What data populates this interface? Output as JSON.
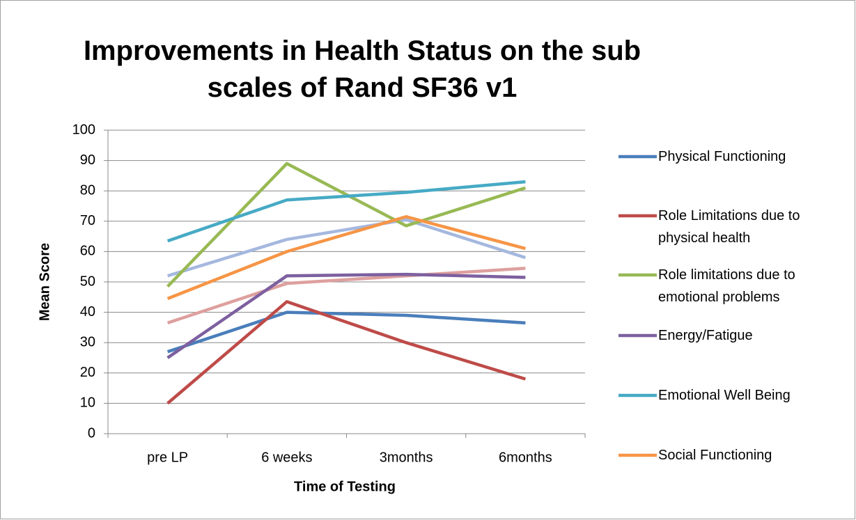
{
  "chart_data": {
    "type": "line",
    "title": "Improvements in Health Status on the sub scales of Rand SF36 v1",
    "x_label": "Time of Testing",
    "y_label": "Mean Score",
    "categories": [
      "pre LP",
      "6 weeks",
      "3months",
      "6months"
    ],
    "series": [
      {
        "name": "Physical Functioning",
        "color": "#4a7ebb",
        "values": [
          27,
          40,
          39,
          36.5
        ]
      },
      {
        "name": "Role Limitations due to physical health",
        "color": "#be4b48",
        "values": [
          10,
          43.5,
          30,
          18
        ]
      },
      {
        "name": "Role limitations due to emotional problems",
        "color": "#98b954",
        "values": [
          48.5,
          89,
          68.5,
          81
        ]
      },
      {
        "name": "Energy/Fatigue",
        "color": "#7d60a0",
        "values": [
          25,
          52,
          52.5,
          51.5
        ]
      },
      {
        "name": "Emotional Well Being",
        "color": "#46aac5",
        "values": [
          63.5,
          77,
          79.5,
          83
        ]
      },
      {
        "name": "Social Functioning",
        "color": "#f69546",
        "values": [
          44.5,
          60,
          71.5,
          61
        ]
      },
      {
        "color": "#a5b8df",
        "values": [
          52,
          64,
          70.5,
          58
        ]
      },
      {
        "color": "#dda09e",
        "values": [
          36.5,
          49.5,
          52,
          54.5
        ]
      }
    ],
    "ylim": [
      0,
      100
    ],
    "yticks": [
      0,
      10,
      20,
      30,
      40,
      50,
      60,
      70,
      80,
      90,
      100
    ],
    "grid": true
  }
}
